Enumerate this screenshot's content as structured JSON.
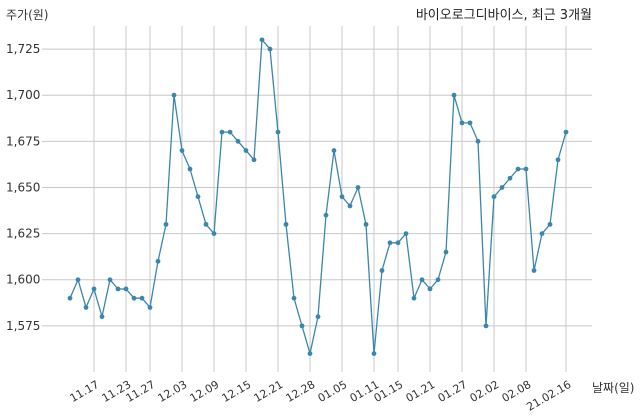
{
  "chart_data": {
    "type": "line",
    "title": "바이오로그디바이스, 최근 3개월",
    "ylabel": "주가(원)",
    "xlabel": "날짜(일)",
    "ylim": [
      1550,
      1737.5
    ],
    "yticks": [
      1575,
      1600,
      1625,
      1650,
      1675,
      1700,
      1725
    ],
    "ytick_labels": [
      "1,575",
      "1,600",
      "1,625",
      "1,650",
      "1,675",
      "1,700",
      "1,725"
    ],
    "xtick_labels": [
      "11.17",
      "11.23",
      "11.27",
      "12.03",
      "12.09",
      "12.15",
      "12.21",
      "12.28",
      "01.05",
      "01.11",
      "01.15",
      "01.21",
      "01.27",
      "02.02",
      "02.08",
      "21.02.16"
    ],
    "xtick_index": [
      3,
      7,
      10,
      14,
      18,
      22,
      26,
      30,
      34,
      38,
      41,
      45,
      49,
      53,
      57,
      62
    ],
    "grid": true,
    "line_color": "#3b86ad",
    "series": [
      {
        "values": [
          1590,
          1600,
          1585,
          1595,
          1580,
          1600,
          1595,
          1595,
          1590,
          1590,
          1585,
          1610,
          1630,
          1700,
          1670,
          1660,
          1645,
          1630,
          1625,
          1680,
          1680,
          1675,
          1670,
          1665,
          1730,
          1725,
          1680,
          1630,
          1590,
          1575,
          1560,
          1580,
          1635,
          1670,
          1645,
          1640,
          1650,
          1630,
          1560,
          1605,
          1620,
          1620,
          1625,
          1590,
          1600,
          1595,
          1600,
          1615,
          1700,
          1685,
          1685,
          1675,
          1575,
          1645,
          1650,
          1655,
          1660,
          1660,
          1605,
          1625,
          1630,
          1665,
          1680
        ]
      }
    ]
  }
}
